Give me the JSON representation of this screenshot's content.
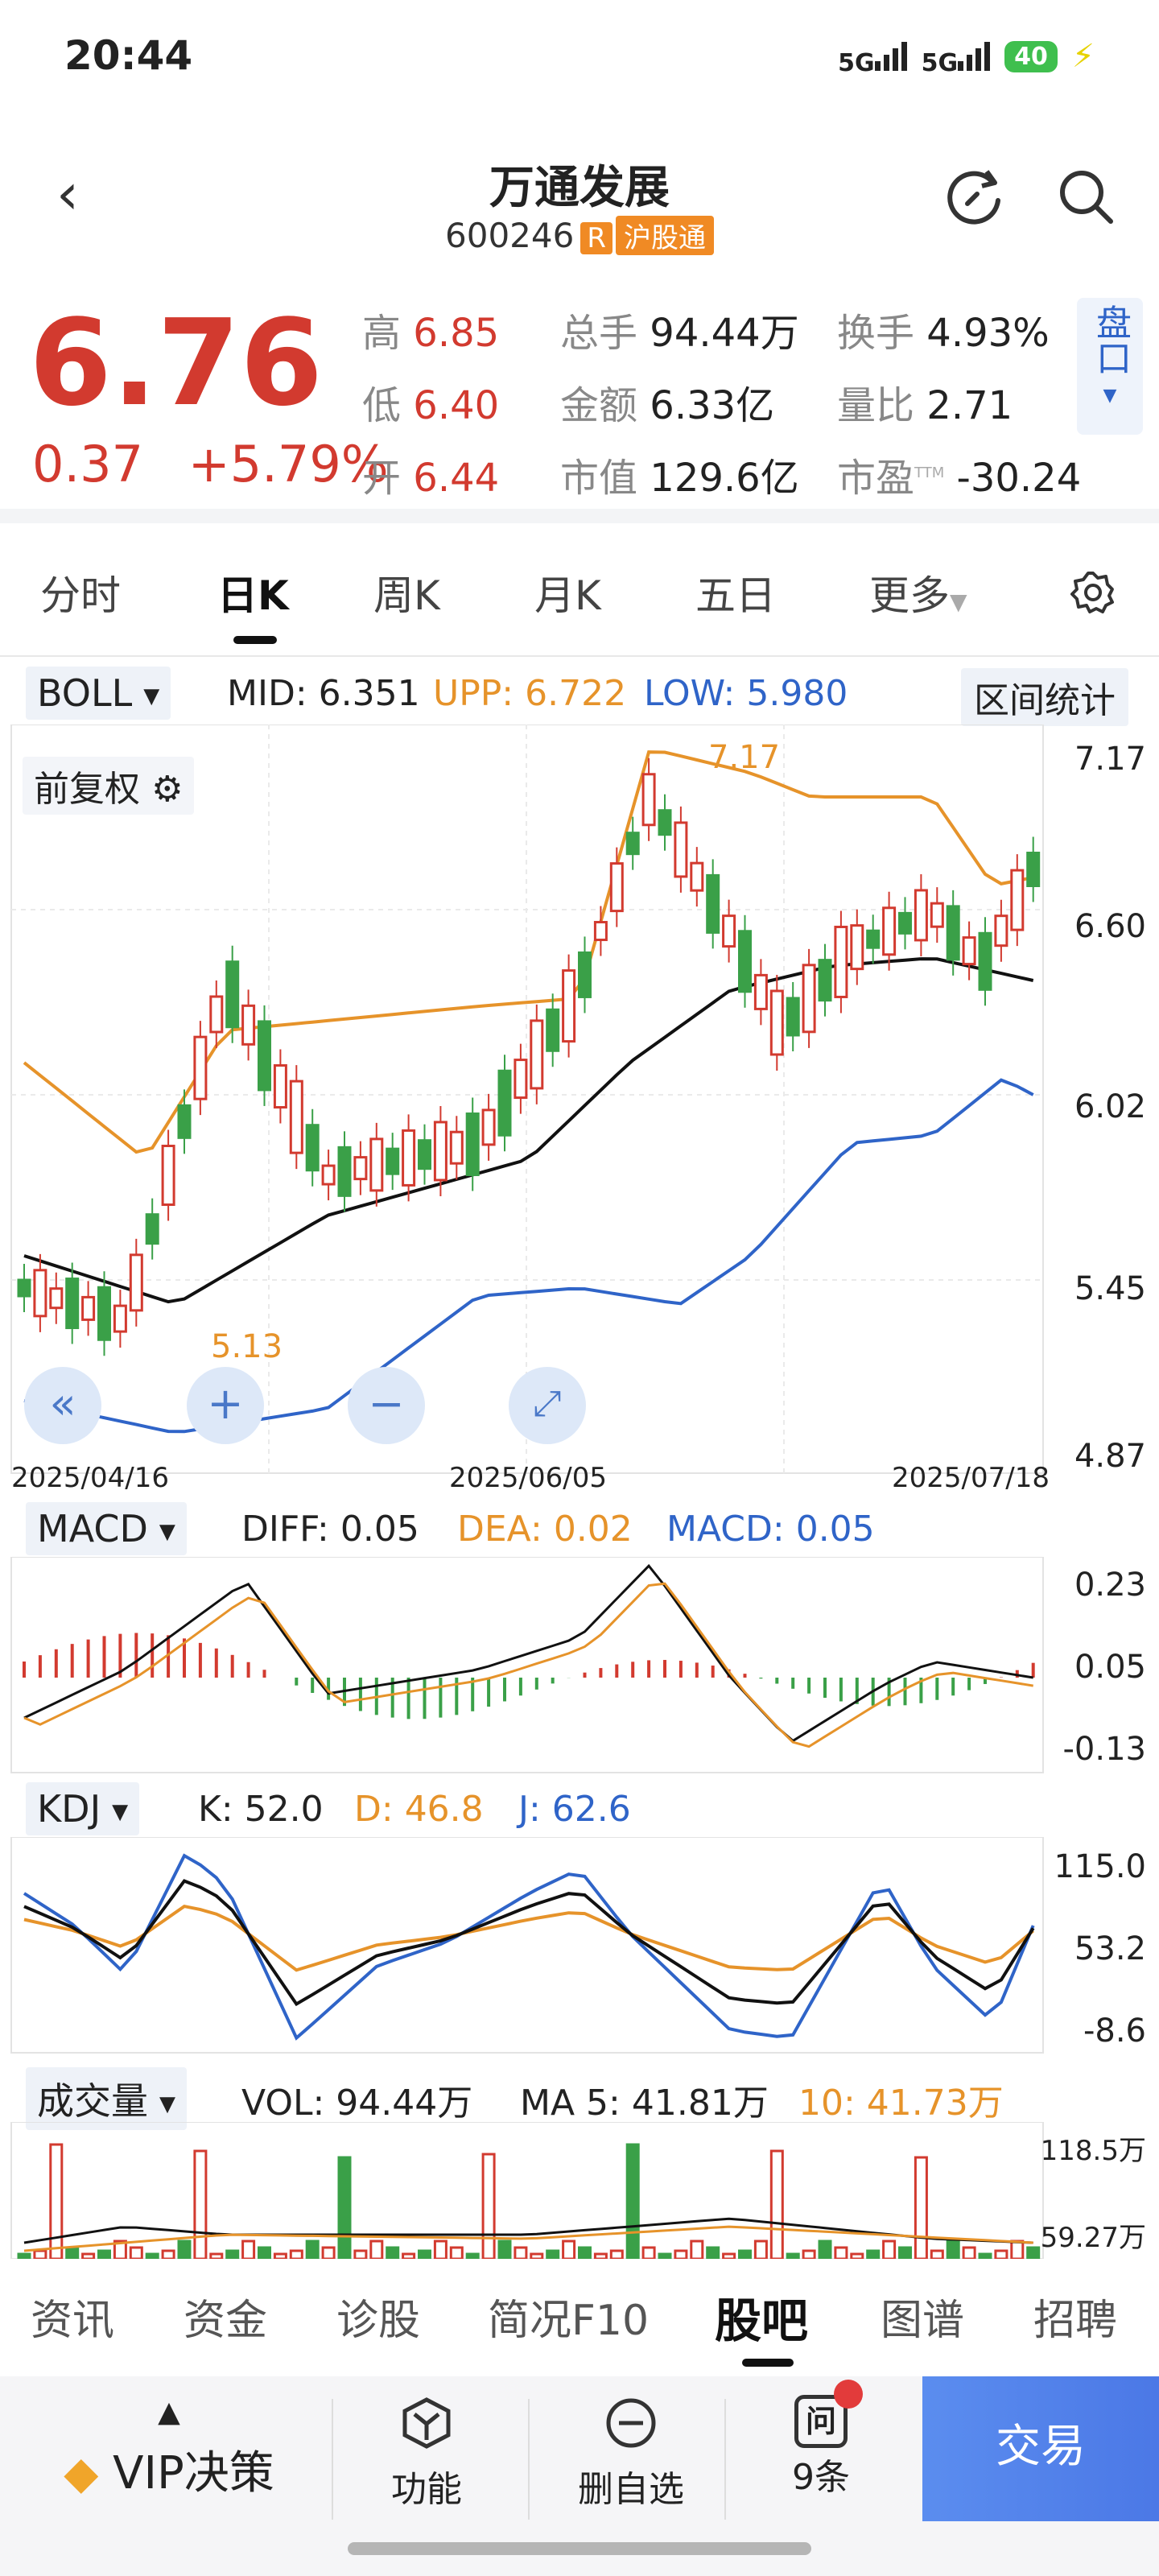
{
  "status_bar": {
    "time": "20:44",
    "net1": "5G",
    "net2": "5G",
    "battery": "40"
  },
  "header": {
    "stock_name": "万通发展",
    "stock_code": "600246",
    "badge_r": "R",
    "badge_hgt": "沪股通"
  },
  "quote": {
    "price": "6.76",
    "change": "0.37",
    "change_pct": "+5.79%",
    "high_label": "高",
    "high": "6.85",
    "low_label": "低",
    "low": "6.40",
    "open_label": "开",
    "open": "6.44",
    "volume_label": "总手",
    "volume": "94.44万",
    "amount_label": "金额",
    "amount": "6.33亿",
    "mktcap_label": "市值",
    "mktcap": "129.6亿",
    "turnover_label": "换手",
    "turnover": "4.93%",
    "vol_ratio_label": "量比",
    "vol_ratio": "2.71",
    "pe_label": "市盈",
    "pe_sup": "TTM",
    "pe": "-30.24",
    "pankou": "盘口"
  },
  "period_tabs": [
    "分时",
    "日K",
    "周K",
    "月K",
    "五日",
    "更多"
  ],
  "boll": {
    "name": "BOLL",
    "mid_label": "MID:",
    "mid": "6.351",
    "upp_label": "UPP:",
    "upp": "6.722",
    "low_label": "LOW:",
    "low": "5.980",
    "range_stat": "区间统计",
    "fuquan": "前复权",
    "y_ticks": [
      "7.17",
      "6.60",
      "6.02",
      "5.45",
      "4.87"
    ],
    "dates": [
      "2025/04/16",
      "2025/06/05",
      "2025/07/18"
    ],
    "max_label": "7.17",
    "min_label": "5.13"
  },
  "macd": {
    "name": "MACD",
    "diff": "DIFF: 0.05",
    "dea": "DEA: 0.02",
    "macd": "MACD: 0.05",
    "y_ticks": [
      "0.23",
      "0.05",
      "-0.13"
    ]
  },
  "kdj": {
    "name": "KDJ",
    "k": "K: 52.0",
    "d": "D: 46.8",
    "j": "J: 62.6",
    "y_ticks": [
      "115.0",
      "53.2",
      "-8.6"
    ]
  },
  "volume": {
    "name": "成交量",
    "vol": "VOL: 94.44万",
    "ma5": "MA 5: 41.81万",
    "ma10": "10: 41.73万",
    "y_ticks": [
      "118.5万",
      "59.27万"
    ]
  },
  "bottom_tabs": [
    "资讯",
    "资金",
    "诊股",
    "简况F10",
    "股吧",
    "图谱",
    "招聘"
  ],
  "bottom_bar": {
    "vip": "VIP决策",
    "func": "功能",
    "del": "删自选",
    "ask": "9条",
    "ask_icon": "问",
    "trade": "交易"
  },
  "colors": {
    "up": "#d23a2f",
    "down": "#3aa048",
    "ma5": "#111111",
    "upper": "#e6932a",
    "lower": "#2f64c8",
    "accent": "#4b78e6"
  }
}
